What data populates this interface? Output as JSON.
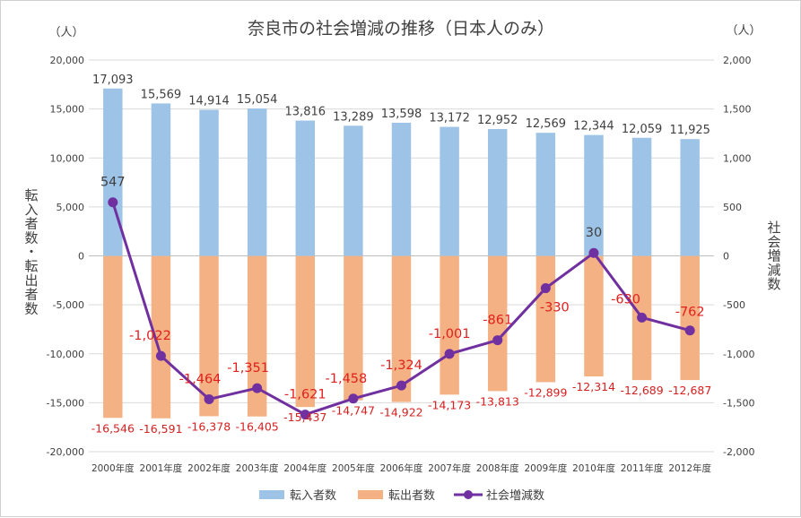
{
  "chart_data": {
    "type": "bar",
    "title": "奈良市の社会増減の推移（日本人のみ）",
    "left_unit": "（人）",
    "right_unit": "（人）",
    "ylabel": "転入者数・転出者数",
    "y2label": "社会増減数",
    "ylim": [
      -20000,
      20000
    ],
    "y2lim": [
      -2000,
      2000
    ],
    "y_ticks": [
      "20,000",
      "15,000",
      "10,000",
      "5,000",
      "0",
      "-5,000",
      "-10,000",
      "-15,000",
      "-20,000"
    ],
    "y2_ticks": [
      "2,000",
      "1,500",
      "1,000",
      "500",
      "0",
      "-500",
      "-1,000",
      "-1,500",
      "-2,000"
    ],
    "categories": [
      "2000年度",
      "2001年度",
      "2002年度",
      "2003年度",
      "2004年度",
      "2005年度",
      "2006年度",
      "2007年度",
      "2008年度",
      "2009年度",
      "2010年度",
      "2011年度",
      "2012年度"
    ],
    "series": [
      {
        "name": "転入者数",
        "type": "bar",
        "axis": "left",
        "color": "#9dc3e6",
        "values": [
          17093,
          15569,
          14914,
          15054,
          13816,
          13289,
          13598,
          13172,
          12952,
          12569,
          12344,
          12059,
          11925
        ],
        "labels": [
          "17,093",
          "15,569",
          "14,914",
          "15,054",
          "13,816",
          "13,289",
          "13,598",
          "13,172",
          "12,952",
          "12,569",
          "12,344",
          "12,059",
          "11,925"
        ]
      },
      {
        "name": "転出者数",
        "type": "bar",
        "axis": "left",
        "color": "#f4b183",
        "values": [
          -16546,
          -16591,
          -16378,
          -16405,
          -15437,
          -14747,
          -14922,
          -14173,
          -13813,
          -12899,
          -12314,
          -12689,
          -12687
        ],
        "labels": [
          "-16,546",
          "-16,591",
          "-16,378",
          "-16,405",
          "-15,437",
          "-14,747",
          "-14,922",
          "-14,173",
          "-13,813",
          "-12,899",
          "-12,314",
          "-12,689",
          "-12,687"
        ]
      },
      {
        "name": "社会増減数",
        "type": "line",
        "axis": "right",
        "color": "#7030a0",
        "values": [
          547,
          -1022,
          -1464,
          -1351,
          -1621,
          -1458,
          -1324,
          -1001,
          -861,
          -330,
          30,
          -630,
          -762
        ],
        "labels": [
          "547",
          "-1,022",
          "-1,464",
          "-1,351",
          "-1,621",
          "-1,458",
          "-1,324",
          "-1,001",
          "-861",
          "-330",
          "30",
          "-630",
          "-762"
        ],
        "label_positive_color": "#404040",
        "label_negative_color": "#e02020"
      }
    ],
    "legend": [
      "転入者数",
      "転出者数",
      "社会増減数"
    ],
    "grid": true,
    "legend_position": "bottom"
  }
}
